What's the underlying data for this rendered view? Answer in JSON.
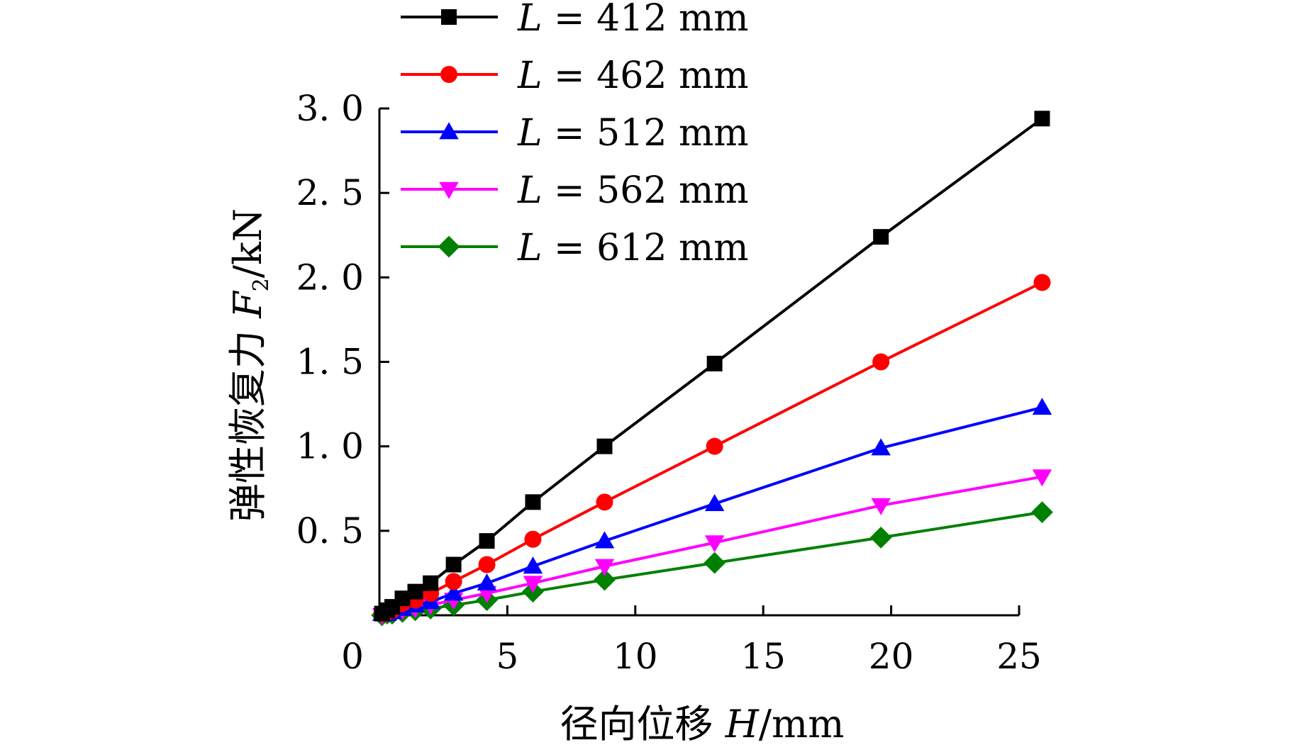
{
  "chart_data": {
    "type": "line",
    "xlabel": {
      "prefix": "径向位移 ",
      "var": "H",
      "unit": "/mm"
    },
    "ylabel": {
      "prefix": "弹性恢复力 ",
      "var": "F",
      "sub": "2",
      "unit": "/kN"
    },
    "xlim": [
      0,
      25
    ],
    "ylim": [
      0,
      3.0
    ],
    "xticks": [
      0,
      5,
      10,
      15,
      20,
      25
    ],
    "xtick_labels": [
      "0",
      "5",
      "10",
      "15",
      "20",
      "25"
    ],
    "yticks": [
      0.5,
      1.0,
      1.5,
      2.0,
      2.5,
      3.0
    ],
    "ytick_labels": [
      "0. 5",
      "1. 0",
      "1. 5",
      "2. 0",
      "2. 5",
      "3. 0"
    ],
    "legend_position": "top-left",
    "series": [
      {
        "name": "L = 412 mm",
        "var": "L",
        "rest": " = 412 mm",
        "color": "#000000",
        "marker": "square",
        "x": [
          0.1,
          0.3,
          0.5,
          0.9,
          1.4,
          2.0,
          2.9,
          4.2,
          6.0,
          8.8,
          13.1,
          19.6,
          25.9
        ],
        "y": [
          0.01,
          0.03,
          0.05,
          0.1,
          0.14,
          0.19,
          0.3,
          0.44,
          0.67,
          1.0,
          1.49,
          2.24,
          2.94
        ]
      },
      {
        "name": "L = 462 mm",
        "var": "L",
        "rest": " = 462 mm",
        "color": "#ff0000",
        "marker": "circle",
        "x": [
          0.1,
          0.3,
          0.5,
          0.9,
          1.4,
          2.0,
          2.9,
          4.2,
          6.0,
          8.8,
          13.1,
          19.6,
          25.9
        ],
        "y": [
          0.01,
          0.02,
          0.03,
          0.07,
          0.09,
          0.13,
          0.2,
          0.3,
          0.45,
          0.67,
          1.0,
          1.5,
          1.97
        ]
      },
      {
        "name": "L = 512 mm",
        "var": "L",
        "rest": " = 512 mm",
        "color": "#0000ff",
        "marker": "triangle-up",
        "x": [
          0.1,
          0.3,
          0.5,
          0.9,
          1.4,
          2.0,
          2.9,
          4.2,
          6.0,
          8.8,
          13.1,
          19.6,
          25.9
        ],
        "y": [
          0.01,
          0.01,
          0.02,
          0.04,
          0.06,
          0.08,
          0.13,
          0.19,
          0.29,
          0.44,
          0.66,
          0.99,
          1.23
        ]
      },
      {
        "name": "L = 562 mm",
        "var": "L",
        "rest": " = 562 mm",
        "color": "#ff00ff",
        "marker": "triangle-down",
        "x": [
          0.1,
          0.3,
          0.5,
          0.9,
          1.4,
          2.0,
          2.9,
          4.2,
          6.0,
          8.8,
          13.1,
          19.6,
          25.9
        ],
        "y": [
          0.0,
          0.01,
          0.02,
          0.03,
          0.04,
          0.06,
          0.09,
          0.13,
          0.19,
          0.29,
          0.43,
          0.65,
          0.82
        ]
      },
      {
        "name": "L = 612 mm",
        "var": "L",
        "rest": " = 612 mm",
        "color": "#008000",
        "marker": "diamond",
        "x": [
          0.1,
          0.3,
          0.5,
          0.9,
          1.4,
          2.0,
          2.9,
          4.2,
          6.0,
          8.8,
          13.1,
          19.6,
          25.9
        ],
        "y": [
          0.0,
          0.01,
          0.01,
          0.02,
          0.03,
          0.04,
          0.06,
          0.09,
          0.14,
          0.21,
          0.31,
          0.46,
          0.61
        ]
      }
    ]
  }
}
